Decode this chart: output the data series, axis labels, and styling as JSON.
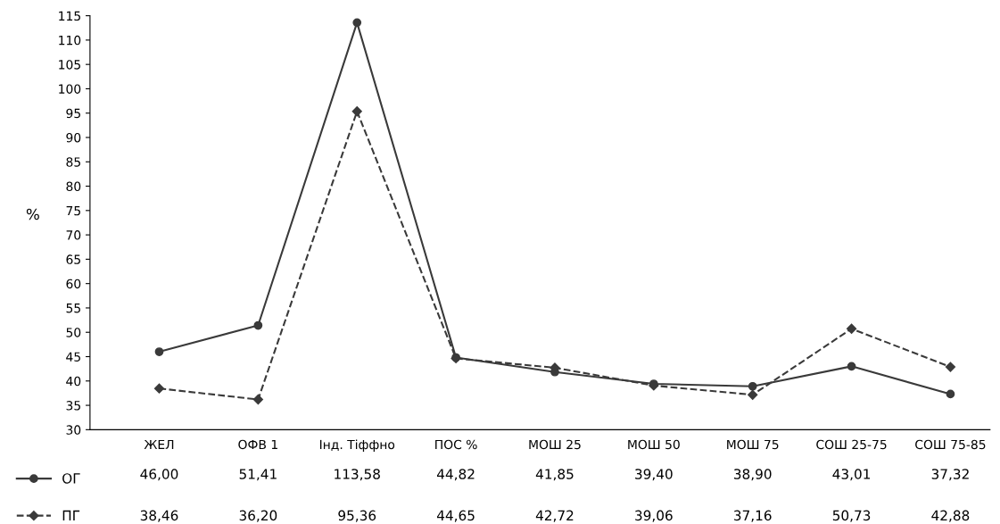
{
  "chart_data": {
    "type": "line",
    "ylabel": "%",
    "categories": [
      "ЖЕЛ",
      "ОФВ 1",
      "Інд. Тіффно",
      "ПОС %",
      "МОШ 25",
      "МОШ 50",
      "МОШ 75",
      "СОШ 25-75",
      "СОШ 75-85"
    ],
    "series": [
      {
        "name": "ОГ",
        "color": "#3a3a3a",
        "line_style": "solid",
        "marker": "circle",
        "values": [
          46.0,
          51.41,
          113.58,
          44.82,
          41.85,
          39.4,
          38.9,
          43.01,
          37.32
        ],
        "value_labels": [
          "46,00",
          "51,41",
          "113,58",
          "44,82",
          "41,85",
          "39,40",
          "38,90",
          "43,01",
          "37,32"
        ]
      },
      {
        "name": "ПГ",
        "color": "#3a3a3a",
        "line_style": "dashed",
        "marker": "diamond",
        "values": [
          38.46,
          36.2,
          95.36,
          44.65,
          42.72,
          39.06,
          37.16,
          50.73,
          42.88
        ],
        "value_labels": [
          "38,46",
          "36,20",
          "95,36",
          "44,65",
          "42,72",
          "39,06",
          "37,16",
          "50,73",
          "42,88"
        ]
      }
    ],
    "ylim": [
      30,
      115
    ],
    "yticks": [
      30,
      35,
      40,
      45,
      50,
      55,
      60,
      65,
      70,
      75,
      80,
      85,
      90,
      95,
      100,
      105,
      110,
      115
    ],
    "grid": false,
    "legend": "bottom left"
  }
}
